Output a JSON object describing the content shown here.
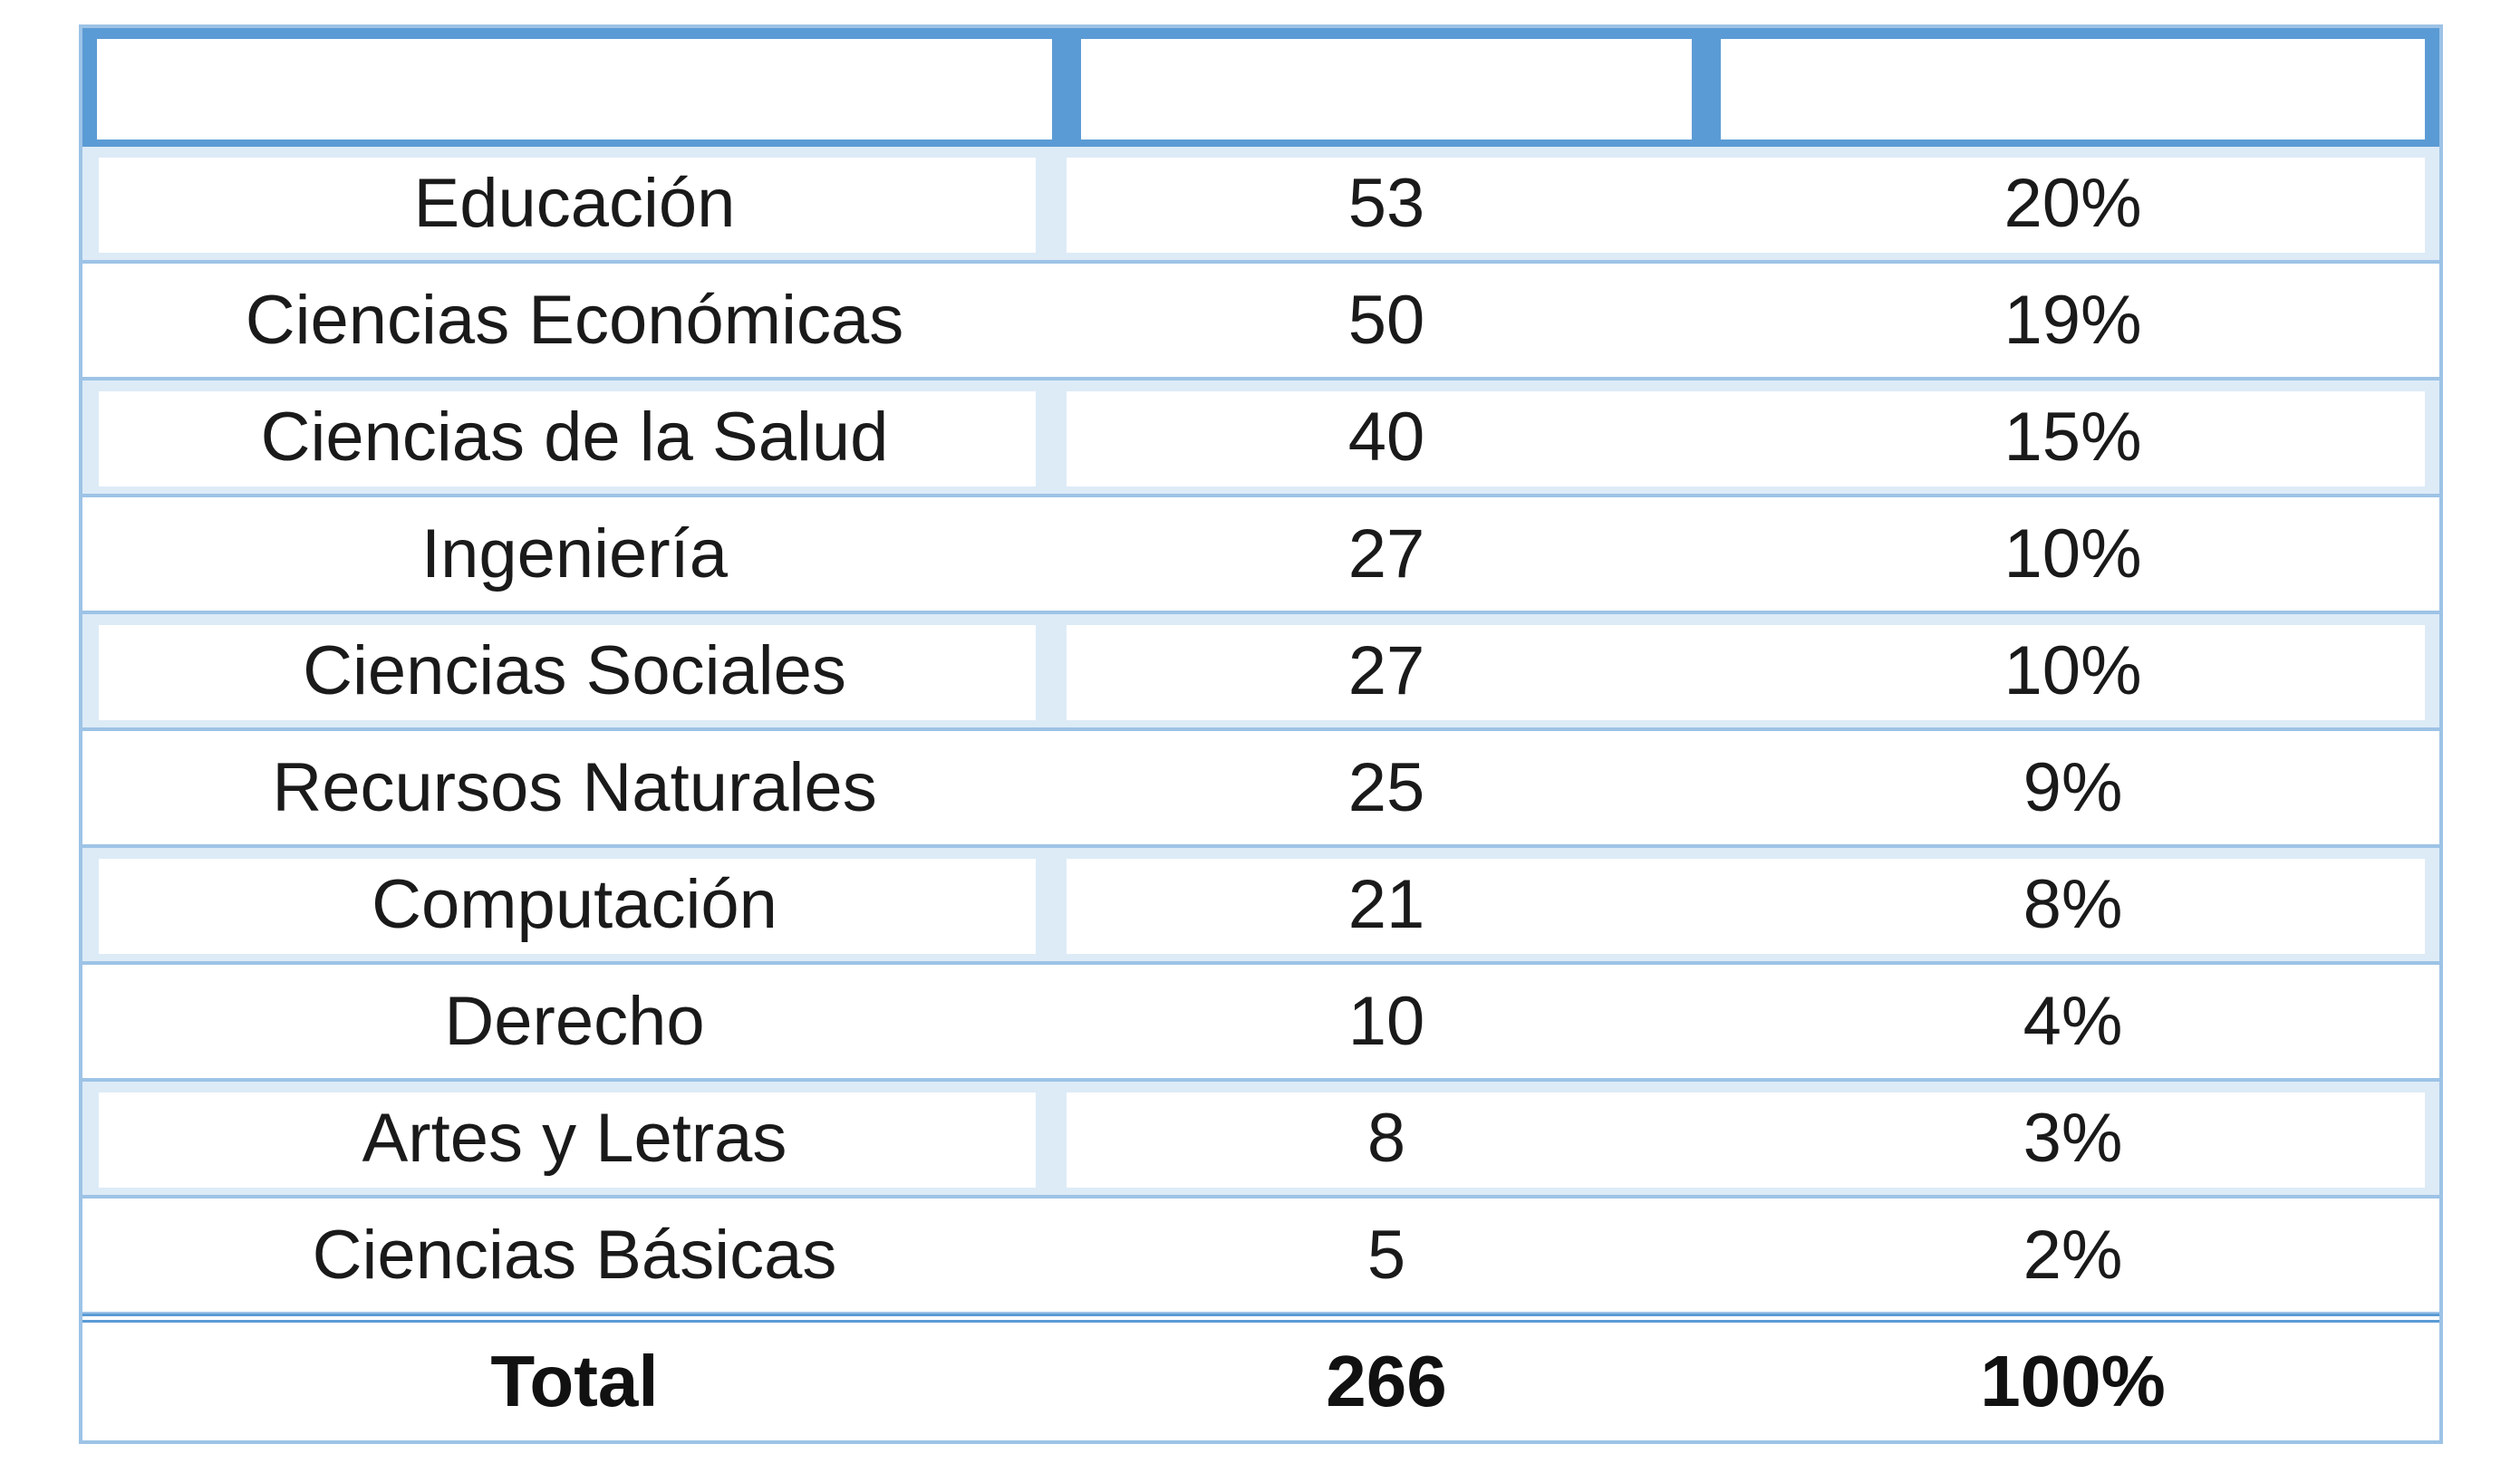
{
  "table": {
    "headers": [
      "",
      "",
      ""
    ],
    "rows": [
      {
        "area": "Educación",
        "count": "53",
        "percent": "20%"
      },
      {
        "area": "Ciencias Económicas",
        "count": "50",
        "percent": "19%"
      },
      {
        "area": "Ciencias de la Salud",
        "count": "40",
        "percent": "15%"
      },
      {
        "area": "Ingeniería",
        "count": "27",
        "percent": "10%"
      },
      {
        "area": "Ciencias Sociales",
        "count": "27",
        "percent": "10%"
      },
      {
        "area": "Recursos Naturales",
        "count": "25",
        "percent": "9%"
      },
      {
        "area": "Computación",
        "count": "21",
        "percent": "8%"
      },
      {
        "area": "Derecho",
        "count": "10",
        "percent": "4%"
      },
      {
        "area": "Artes y Letras",
        "count": "8",
        "percent": "3%"
      },
      {
        "area": "Ciencias Básicas",
        "count": "5",
        "percent": "2%"
      }
    ],
    "total": {
      "label": "Total",
      "count": "266",
      "percent": "100%"
    }
  },
  "colors": {
    "header_bar": "#5b9bd5",
    "band": "#ddebf7",
    "border": "#9dc3e6"
  }
}
